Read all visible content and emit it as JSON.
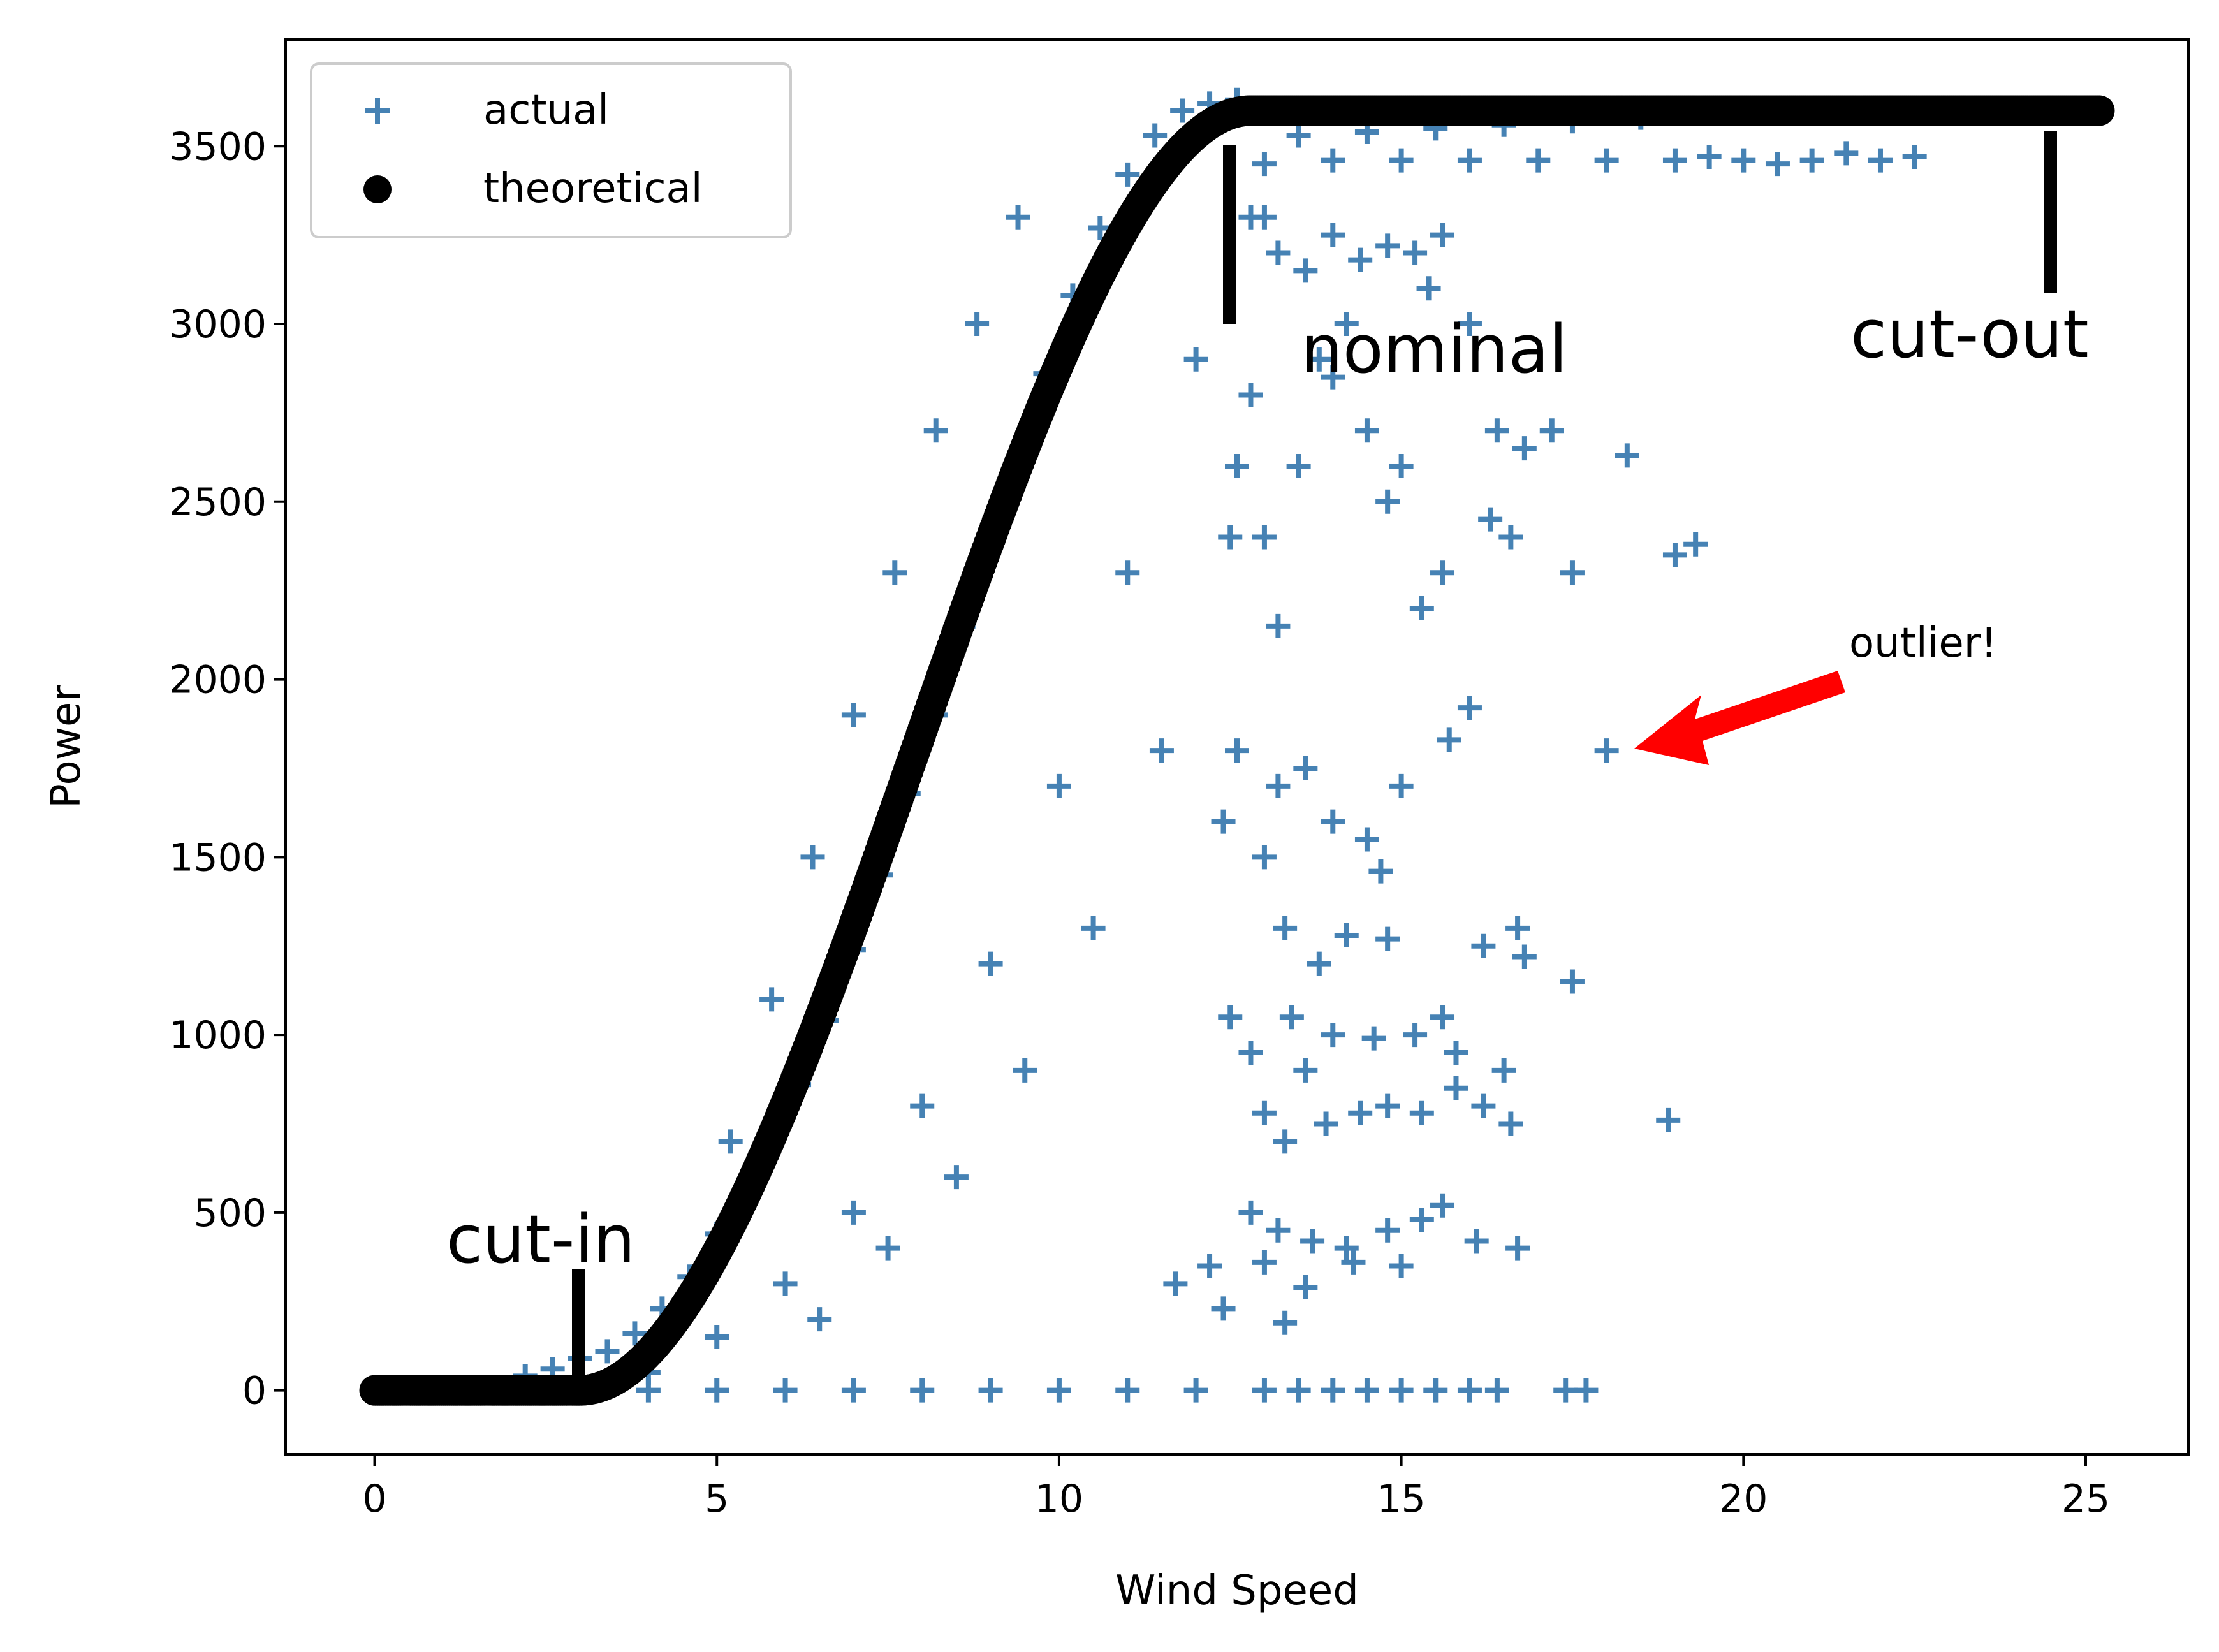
{
  "chart_data": {
    "type": "scatter",
    "title": "",
    "xlabel": "Wind Speed",
    "ylabel": "Power",
    "xlim": [
      -1.3,
      26.5
    ],
    "ylim": [
      -180,
      3800
    ],
    "x_ticks": [
      0,
      5,
      10,
      15,
      20,
      25
    ],
    "y_ticks": [
      0,
      500,
      1000,
      1500,
      2000,
      2500,
      3000,
      3500
    ],
    "x_tick_labels": [
      "0",
      "5",
      "10",
      "15",
      "20",
      "25"
    ],
    "y_tick_labels": [
      "0",
      "500",
      "1000",
      "1500",
      "2000",
      "2500",
      "3000",
      "3500"
    ],
    "grid": false,
    "legend_position": "top-left",
    "legend": [
      "actual",
      "theoretical"
    ],
    "colors": {
      "actual": "#4682b4",
      "theoretical": "#000000",
      "arrow": "#ff0000"
    },
    "series": [
      {
        "name": "actual",
        "marker": "plus",
        "points": [
          [
            2.2,
            40
          ],
          [
            2.6,
            60
          ],
          [
            3.0,
            90
          ],
          [
            3.4,
            110
          ],
          [
            3.8,
            160
          ],
          [
            4.2,
            230
          ],
          [
            4.6,
            320
          ],
          [
            5.0,
            440
          ],
          [
            5.4,
            560
          ],
          [
            5.8,
            700
          ],
          [
            6.2,
            860
          ],
          [
            6.6,
            1040
          ],
          [
            7.0,
            1240
          ],
          [
            7.4,
            1450
          ],
          [
            7.8,
            1680
          ],
          [
            8.2,
            1900
          ],
          [
            8.6,
            2150
          ],
          [
            9.0,
            2380
          ],
          [
            9.4,
            2620
          ],
          [
            9.8,
            2860
          ],
          [
            10.2,
            3080
          ],
          [
            10.6,
            3270
          ],
          [
            11.0,
            3420
          ],
          [
            11.4,
            3530
          ],
          [
            11.8,
            3600
          ],
          [
            12.2,
            3620
          ],
          [
            12.6,
            3630
          ],
          [
            5.2,
            700
          ],
          [
            5.8,
            1100
          ],
          [
            6.4,
            1500
          ],
          [
            7.0,
            1900
          ],
          [
            7.6,
            2300
          ],
          [
            8.2,
            2700
          ],
          [
            8.8,
            3000
          ],
          [
            9.4,
            3300
          ],
          [
            4.0,
            50
          ],
          [
            5.0,
            150
          ],
          [
            6.0,
            300
          ],
          [
            7.0,
            500
          ],
          [
            8.0,
            800
          ],
          [
            9.0,
            1200
          ],
          [
            10.0,
            1700
          ],
          [
            11.0,
            2300
          ],
          [
            12.0,
            2900
          ],
          [
            13.0,
            3300
          ],
          [
            6.5,
            200
          ],
          [
            7.5,
            400
          ],
          [
            8.5,
            600
          ],
          [
            9.5,
            900
          ],
          [
            10.5,
            1300
          ],
          [
            11.5,
            1800
          ],
          [
            12.5,
            2400
          ],
          [
            12.4,
            1600
          ],
          [
            12.6,
            2600
          ],
          [
            12.8,
            2800
          ],
          [
            13.0,
            2400
          ],
          [
            13.2,
            2150
          ],
          [
            13.5,
            2600
          ],
          [
            13.8,
            2900
          ],
          [
            14.0,
            2850
          ],
          [
            14.2,
            3000
          ],
          [
            14.5,
            2700
          ],
          [
            14.8,
            2500
          ],
          [
            15.0,
            2600
          ],
          [
            15.4,
            3100
          ],
          [
            15.6,
            3250
          ],
          [
            16.0,
            3000
          ],
          [
            16.4,
            2700
          ],
          [
            16.8,
            2650
          ],
          [
            17.2,
            2700
          ],
          [
            17.5,
            2300
          ],
          [
            18.3,
            2630
          ],
          [
            19.0,
            2350
          ],
          [
            19.3,
            2380
          ],
          [
            15.3,
            2200
          ],
          [
            15.6,
            2300
          ],
          [
            16.3,
            2450
          ],
          [
            16.6,
            2400
          ],
          [
            13.2,
            1700
          ],
          [
            13.6,
            1750
          ],
          [
            14.0,
            1600
          ],
          [
            14.5,
            1550
          ],
          [
            14.7,
            1460
          ],
          [
            15.0,
            1700
          ],
          [
            15.7,
            1830
          ],
          [
            16.0,
            1920
          ],
          [
            12.6,
            1800
          ],
          [
            13.0,
            1500
          ],
          [
            13.3,
            1300
          ],
          [
            13.8,
            1200
          ],
          [
            14.2,
            1280
          ],
          [
            14.8,
            1270
          ],
          [
            16.2,
            1250
          ],
          [
            16.7,
            1300
          ],
          [
            16.8,
            1220
          ],
          [
            17.5,
            1150
          ],
          [
            12.5,
            1050
          ],
          [
            12.8,
            950
          ],
          [
            13.4,
            1050
          ],
          [
            13.6,
            900
          ],
          [
            14.0,
            1000
          ],
          [
            14.6,
            990
          ],
          [
            15.2,
            1000
          ],
          [
            15.6,
            1050
          ],
          [
            15.8,
            950
          ],
          [
            16.5,
            900
          ],
          [
            13.0,
            780
          ],
          [
            13.3,
            700
          ],
          [
            13.9,
            750
          ],
          [
            14.4,
            780
          ],
          [
            14.8,
            800
          ],
          [
            15.3,
            780
          ],
          [
            15.8,
            850
          ],
          [
            16.2,
            800
          ],
          [
            16.6,
            750
          ],
          [
            18.9,
            760
          ],
          [
            12.8,
            500
          ],
          [
            13.2,
            450
          ],
          [
            13.7,
            420
          ],
          [
            14.2,
            400
          ],
          [
            14.8,
            450
          ],
          [
            15.3,
            480
          ],
          [
            15.6,
            520
          ],
          [
            16.1,
            420
          ],
          [
            16.7,
            400
          ],
          [
            13.0,
            360
          ],
          [
            13.6,
            290
          ],
          [
            14.3,
            360
          ],
          [
            15.0,
            350
          ],
          [
            13.3,
            190
          ],
          [
            12.2,
            350
          ],
          [
            11.7,
            300
          ],
          [
            12.4,
            230
          ],
          [
            12.8,
            3300
          ],
          [
            13.2,
            3200
          ],
          [
            13.6,
            3150
          ],
          [
            14.0,
            3250
          ],
          [
            14.4,
            3180
          ],
          [
            14.8,
            3220
          ],
          [
            15.2,
            3200
          ],
          [
            13.0,
            3450
          ],
          [
            14.0,
            3460
          ],
          [
            15.0,
            3460
          ],
          [
            16.0,
            3460
          ],
          [
            17.0,
            3460
          ],
          [
            18.0,
            3460
          ],
          [
            19.0,
            3460
          ],
          [
            20.0,
            3460
          ],
          [
            21.0,
            3460
          ],
          [
            22.0,
            3460
          ],
          [
            22.5,
            3470
          ],
          [
            21.5,
            3480
          ],
          [
            20.5,
            3450
          ],
          [
            19.5,
            3470
          ],
          [
            13.5,
            3530
          ],
          [
            14.5,
            3540
          ],
          [
            15.5,
            3550
          ],
          [
            16.5,
            3560
          ],
          [
            17.5,
            3570
          ],
          [
            18.5,
            3580
          ],
          [
            4.0,
            0
          ],
          [
            5.0,
            0
          ],
          [
            6.0,
            0
          ],
          [
            7.0,
            0
          ],
          [
            8.0,
            0
          ],
          [
            9.0,
            0
          ],
          [
            10.0,
            0
          ],
          [
            11.0,
            0
          ],
          [
            12.0,
            0
          ],
          [
            13.0,
            0
          ],
          [
            13.5,
            0
          ],
          [
            14.0,
            0
          ],
          [
            14.5,
            0
          ],
          [
            15.0,
            0
          ],
          [
            15.5,
            0
          ],
          [
            16.0,
            0
          ],
          [
            16.4,
            0
          ],
          [
            17.4,
            0
          ],
          [
            17.7,
            0
          ],
          [
            18.0,
            1800
          ]
        ]
      },
      {
        "name": "theoretical",
        "marker": "circle",
        "curve": {
          "cut_in": 3.0,
          "rated_speed": 12.8,
          "rated_power": 3600,
          "cut_out": 25.2
        }
      }
    ],
    "annotations": [
      {
        "text": "cut-in",
        "at": [
          3.0,
          0
        ]
      },
      {
        "text": "nominal",
        "at": [
          12.5,
          3600
        ]
      },
      {
        "text": "cut-out",
        "at": [
          24.5,
          3600
        ]
      },
      {
        "text": "outlier!",
        "at": [
          18.0,
          1800
        ]
      }
    ]
  }
}
